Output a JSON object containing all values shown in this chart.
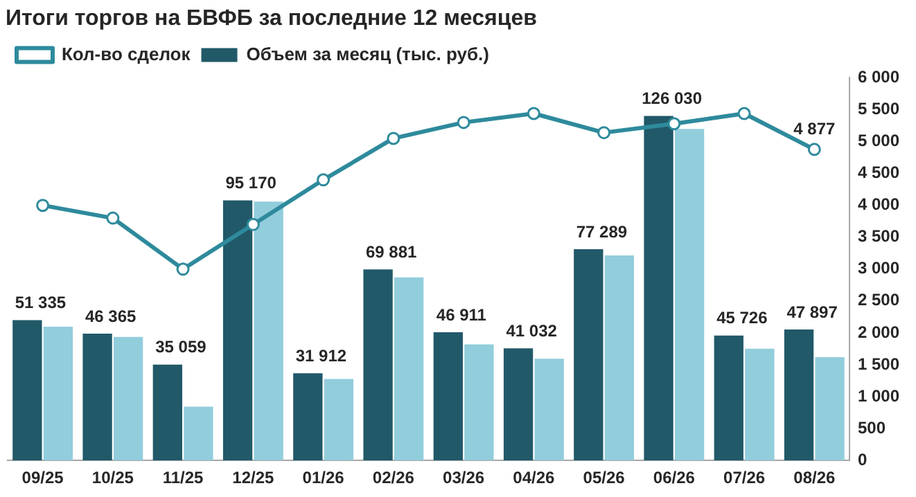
{
  "chart_data": {
    "type": "bar",
    "title": "Итоги торгов на БВФБ за последние 12 месяцев",
    "categories": [
      "09/25",
      "10/25",
      "11/25",
      "12/25",
      "01/26",
      "02/26",
      "03/26",
      "04/26",
      "05/26",
      "06/26",
      "07/26",
      "08/26"
    ],
    "series": [
      {
        "name": "Объем за месяц (тыс. руб.)",
        "color": "#215968",
        "values": [
          51335,
          46365,
          35059,
          95170,
          31912,
          69881,
          46911,
          41032,
          77289,
          126030,
          45726,
          47897
        ],
        "value_labels": [
          "51 335",
          "46 365",
          "35 059",
          "95 170",
          "31 912",
          "69 881",
          "46 911",
          "41 032",
          "77 289",
          "126 030",
          "45 726",
          "47 897"
        ]
      },
      {
        "color": "#92cddc",
        "values": [
          48900,
          45200,
          19700,
          94700,
          29800,
          67000,
          42500,
          37200,
          75000,
          121300,
          40900,
          37800
        ]
      },
      {
        "name": "Кол-во сделок",
        "type": "line",
        "axis": "y2",
        "color": "#2e8a9c",
        "marker": "circle",
        "values": [
          4000,
          3800,
          3000,
          3700,
          4400,
          5050,
          5300,
          5440,
          5140,
          5280,
          5440,
          4877
        ],
        "value_labels": [
          null,
          null,
          null,
          null,
          null,
          null,
          null,
          null,
          null,
          null,
          null,
          "4 877"
        ]
      }
    ],
    "ylim": [
      0,
      140000
    ],
    "y2lim": [
      0,
      6000
    ],
    "y2ticks": [
      {
        "value": 0,
        "label": "0"
      },
      {
        "value": 500,
        "label": "500"
      },
      {
        "value": 1000,
        "label": "1 000"
      },
      {
        "value": 1500,
        "label": "1 500"
      },
      {
        "value": 2000,
        "label": "2 000"
      },
      {
        "value": 2500,
        "label": "2 500"
      },
      {
        "value": 3000,
        "label": "3 000"
      },
      {
        "value": 3500,
        "label": "3 500"
      },
      {
        "value": 4000,
        "label": "4 000"
      },
      {
        "value": 4500,
        "label": "4 500"
      },
      {
        "value": 5000,
        "label": "5 000"
      },
      {
        "value": 5500,
        "label": "5 500"
      },
      {
        "value": 6000,
        "label": "6 000"
      }
    ],
    "grid": false,
    "legend": "top left"
  }
}
